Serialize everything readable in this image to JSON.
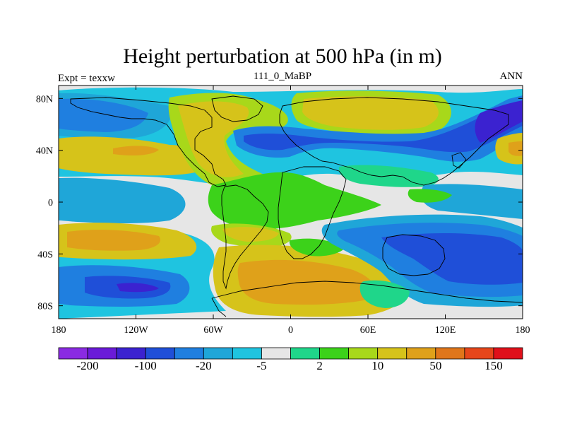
{
  "title": "Height perturbation at 500 hPa (in m)",
  "left_label": "Expt = texxw",
  "center_label": "111_0_MaBP",
  "right_label": "ANN",
  "lat_ticks": [
    {
      "label": "80N",
      "value": 80
    },
    {
      "label": "40N",
      "value": 40
    },
    {
      "label": "0",
      "value": 0
    },
    {
      "label": "40S",
      "value": -40
    },
    {
      "label": "80S",
      "value": -80
    }
  ],
  "lon_ticks": [
    {
      "label": "180",
      "value": -180
    },
    {
      "label": "120W",
      "value": -120
    },
    {
      "label": "60W",
      "value": -60
    },
    {
      "label": "0",
      "value": 0
    },
    {
      "label": "60E",
      "value": 60
    },
    {
      "label": "120E",
      "value": 120
    },
    {
      "label": "180",
      "value": 180
    }
  ],
  "colorbar": {
    "colors": [
      "#8a2be2",
      "#6a1ad8",
      "#3b22d0",
      "#1f4fd8",
      "#1f7fe0",
      "#1fa6d8",
      "#1fc4e0",
      "#e6e6e6",
      "#1fd68a",
      "#3cd21a",
      "#a8d81a",
      "#d6c31a",
      "#dfa11a",
      "#e0761a",
      "#e6461a",
      "#e0101a"
    ],
    "labels": [
      {
        "text": "-200",
        "boundary": 1
      },
      {
        "text": "-100",
        "boundary": 3
      },
      {
        "text": "-20",
        "boundary": 5
      },
      {
        "text": "-5",
        "boundary": 7
      },
      {
        "text": "2",
        "boundary": 9
      },
      {
        "text": "10",
        "boundary": 11
      },
      {
        "text": "50",
        "boundary": 13
      },
      {
        "text": "150",
        "boundary": 15
      }
    ]
  },
  "field_colors": {
    "neutral": "#e6e6e6",
    "cyan": "#1fc4e0",
    "lightblue": "#1fa6d8",
    "blue": "#1f7fe0",
    "deepblue": "#1f4fd8",
    "navy": "#3b22d0",
    "teal": "#1fd68a",
    "green": "#3cd21a",
    "yellowgreen": "#a8d81a",
    "gold": "#d6c31a",
    "orange": "#dfa11a",
    "darkorange": "#e0761a"
  }
}
